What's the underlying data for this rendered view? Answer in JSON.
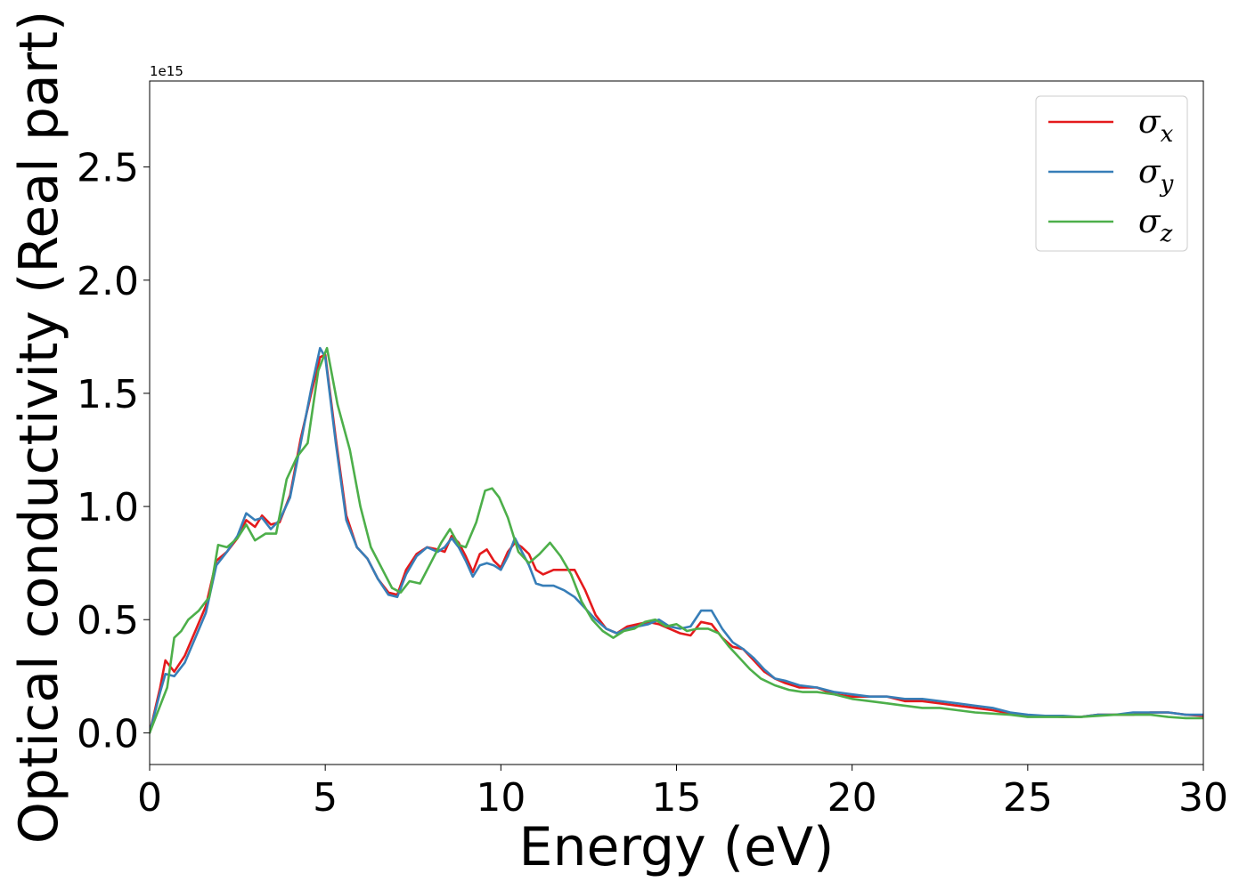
{
  "chart_data": {
    "type": "line",
    "xlabel": "Energy (eV)",
    "ylabel": "Optical conductivity (Real part)",
    "y_offset_text": "1e15",
    "xlim": [
      0,
      30
    ],
    "ylim": [
      -0.14,
      2.88
    ],
    "x_ticks": [
      0,
      5,
      10,
      15,
      20,
      25,
      30
    ],
    "x_tick_labels": [
      "0",
      "5",
      "10",
      "15",
      "20",
      "25",
      "30"
    ],
    "y_ticks": [
      0.0,
      0.5,
      1.0,
      1.5,
      2.0,
      2.5
    ],
    "y_tick_labels": [
      "0.0",
      "0.5",
      "1.0",
      "1.5",
      "2.0",
      "2.5"
    ],
    "grid": false,
    "legend_position": "top-right",
    "series": [
      {
        "name": "σ",
        "subscript": "x",
        "color": "#e41a1c",
        "x": [
          0,
          0.3,
          0.45,
          0.7,
          1,
          1.3,
          1.6,
          1.9,
          2.2,
          2.5,
          2.75,
          3,
          3.2,
          3.45,
          3.7,
          4,
          4.3,
          4.6,
          4.85,
          5,
          5.3,
          5.6,
          5.9,
          6.2,
          6.5,
          6.8,
          7.05,
          7.3,
          7.6,
          7.9,
          8.2,
          8.4,
          8.6,
          8.8,
          9,
          9.2,
          9.4,
          9.6,
          9.8,
          10,
          10.2,
          10.4,
          10.6,
          10.8,
          11,
          11.2,
          11.5,
          11.8,
          12.1,
          12.4,
          12.7,
          13,
          13.3,
          13.6,
          13.9,
          14.2,
          14.5,
          14.8,
          15.1,
          15.4,
          15.7,
          16,
          16.3,
          16.6,
          16.9,
          17.2,
          17.5,
          17.8,
          18.1,
          18.5,
          19,
          19.5,
          20,
          20.5,
          21,
          21.5,
          22,
          22.5,
          23,
          23.5,
          24,
          24.5,
          25,
          25.5,
          26,
          26.5,
          27,
          27.5,
          28,
          28.5,
          29,
          29.5,
          30
        ],
        "y": [
          0,
          0.2,
          0.32,
          0.27,
          0.34,
          0.45,
          0.56,
          0.76,
          0.8,
          0.86,
          0.94,
          0.91,
          0.96,
          0.92,
          0.93,
          1.05,
          1.3,
          1.5,
          1.66,
          1.67,
          1.3,
          0.96,
          0.82,
          0.77,
          0.68,
          0.62,
          0.61,
          0.72,
          0.79,
          0.82,
          0.81,
          0.8,
          0.87,
          0.84,
          0.78,
          0.71,
          0.79,
          0.81,
          0.76,
          0.73,
          0.8,
          0.84,
          0.82,
          0.79,
          0.72,
          0.7,
          0.72,
          0.72,
          0.72,
          0.63,
          0.52,
          0.46,
          0.44,
          0.47,
          0.48,
          0.49,
          0.48,
          0.46,
          0.44,
          0.43,
          0.49,
          0.48,
          0.42,
          0.38,
          0.37,
          0.32,
          0.27,
          0.24,
          0.22,
          0.2,
          0.2,
          0.17,
          0.16,
          0.16,
          0.16,
          0.14,
          0.14,
          0.13,
          0.12,
          0.11,
          0.1,
          0.085,
          0.075,
          0.075,
          0.07,
          0.07,
          0.08,
          0.08,
          0.08,
          0.09,
          0.09,
          0.08,
          0.075
        ]
      },
      {
        "name": "σ",
        "subscript": "y",
        "color": "#377eb8",
        "x": [
          0,
          0.3,
          0.45,
          0.7,
          1,
          1.3,
          1.6,
          1.9,
          2.2,
          2.5,
          2.75,
          3,
          3.2,
          3.45,
          3.7,
          4,
          4.3,
          4.6,
          4.85,
          5,
          5.3,
          5.6,
          5.9,
          6.2,
          6.5,
          6.8,
          7.05,
          7.3,
          7.6,
          7.9,
          8.2,
          8.4,
          8.6,
          8.8,
          9,
          9.2,
          9.4,
          9.6,
          9.8,
          10,
          10.2,
          10.4,
          10.6,
          10.8,
          11,
          11.2,
          11.5,
          11.8,
          12.1,
          12.4,
          12.7,
          13,
          13.3,
          13.6,
          13.9,
          14.2,
          14.5,
          14.8,
          15.1,
          15.4,
          15.7,
          16,
          16.3,
          16.6,
          16.9,
          17.2,
          17.5,
          17.8,
          18.1,
          18.5,
          19,
          19.5,
          20,
          20.5,
          21,
          21.5,
          22,
          22.5,
          23,
          23.5,
          24,
          24.5,
          25,
          25.5,
          26,
          26.5,
          27,
          27.5,
          28,
          28.5,
          29,
          29.5,
          30
        ],
        "y": [
          0,
          0.18,
          0.26,
          0.25,
          0.31,
          0.42,
          0.53,
          0.74,
          0.8,
          0.87,
          0.97,
          0.94,
          0.95,
          0.9,
          0.94,
          1.04,
          1.28,
          1.52,
          1.7,
          1.66,
          1.28,
          0.94,
          0.82,
          0.77,
          0.68,
          0.61,
          0.6,
          0.7,
          0.78,
          0.82,
          0.8,
          0.82,
          0.86,
          0.82,
          0.76,
          0.69,
          0.74,
          0.75,
          0.74,
          0.72,
          0.78,
          0.86,
          0.8,
          0.74,
          0.66,
          0.65,
          0.65,
          0.63,
          0.6,
          0.55,
          0.5,
          0.46,
          0.44,
          0.46,
          0.47,
          0.48,
          0.5,
          0.47,
          0.46,
          0.47,
          0.54,
          0.54,
          0.46,
          0.4,
          0.37,
          0.33,
          0.28,
          0.24,
          0.23,
          0.21,
          0.2,
          0.18,
          0.17,
          0.16,
          0.16,
          0.15,
          0.15,
          0.14,
          0.13,
          0.12,
          0.11,
          0.09,
          0.08,
          0.075,
          0.075,
          0.07,
          0.08,
          0.08,
          0.09,
          0.09,
          0.09,
          0.08,
          0.08
        ]
      },
      {
        "name": "σ",
        "subscript": "z",
        "color": "#4daf4a",
        "x": [
          0,
          0.3,
          0.5,
          0.7,
          0.9,
          1.1,
          1.4,
          1.7,
          1.95,
          2.2,
          2.5,
          2.75,
          3,
          3.3,
          3.6,
          3.9,
          4.2,
          4.5,
          4.8,
          5.05,
          5.35,
          5.7,
          6,
          6.3,
          6.6,
          6.9,
          7.15,
          7.4,
          7.7,
          8,
          8.3,
          8.55,
          8.8,
          9,
          9.3,
          9.55,
          9.75,
          9.95,
          10.2,
          10.5,
          10.8,
          11.1,
          11.4,
          11.7,
          12,
          12.3,
          12.6,
          12.9,
          13.2,
          13.5,
          13.8,
          14.1,
          14.4,
          14.7,
          15,
          15.3,
          15.6,
          15.9,
          16.2,
          16.5,
          16.8,
          17.1,
          17.4,
          17.8,
          18.2,
          18.6,
          19,
          19.5,
          20,
          20.5,
          21,
          21.5,
          22,
          22.5,
          23,
          23.5,
          24,
          24.5,
          25,
          25.5,
          26,
          26.5,
          27,
          27.5,
          28,
          28.5,
          29,
          29.5,
          30
        ],
        "y": [
          0,
          0.12,
          0.2,
          0.42,
          0.45,
          0.5,
          0.54,
          0.6,
          0.83,
          0.82,
          0.86,
          0.92,
          0.85,
          0.88,
          0.88,
          1.12,
          1.22,
          1.28,
          1.6,
          1.7,
          1.45,
          1.25,
          1.0,
          0.82,
          0.73,
          0.64,
          0.62,
          0.67,
          0.66,
          0.75,
          0.84,
          0.9,
          0.83,
          0.82,
          0.93,
          1.07,
          1.08,
          1.04,
          0.95,
          0.8,
          0.75,
          0.79,
          0.84,
          0.78,
          0.7,
          0.58,
          0.5,
          0.45,
          0.42,
          0.45,
          0.46,
          0.49,
          0.5,
          0.47,
          0.48,
          0.45,
          0.46,
          0.46,
          0.44,
          0.38,
          0.33,
          0.28,
          0.24,
          0.21,
          0.19,
          0.18,
          0.18,
          0.17,
          0.15,
          0.14,
          0.13,
          0.12,
          0.11,
          0.11,
          0.1,
          0.09,
          0.085,
          0.08,
          0.07,
          0.07,
          0.07,
          0.07,
          0.075,
          0.08,
          0.08,
          0.08,
          0.07,
          0.065,
          0.065
        ]
      }
    ]
  }
}
